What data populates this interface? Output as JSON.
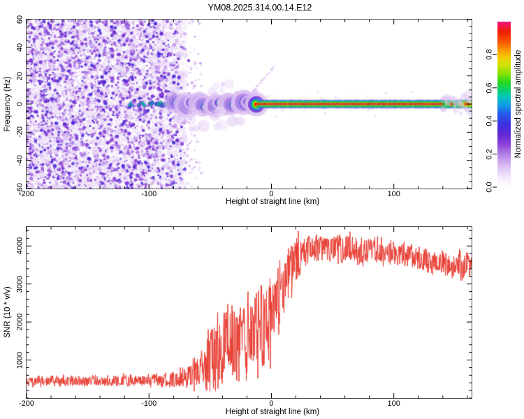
{
  "title": "YM08.2025.314.00.14.E12",
  "colors": {
    "trace_red": "#e8392e",
    "frame": "#4a4a4a",
    "tick": "#000000",
    "text": "#000000",
    "background": "#ffffff"
  },
  "colormap_stops": [
    [
      0.0,
      "#ffffff"
    ],
    [
      0.05,
      "#f6effc"
    ],
    [
      0.13,
      "#dabcf2"
    ],
    [
      0.2,
      "#b27ee6"
    ],
    [
      0.26,
      "#8a3fd8"
    ],
    [
      0.32,
      "#6228d2"
    ],
    [
      0.38,
      "#3c2fe0"
    ],
    [
      0.44,
      "#2458ec"
    ],
    [
      0.49,
      "#1394e8"
    ],
    [
      0.54,
      "#06c4c2"
    ],
    [
      0.58,
      "#04d078"
    ],
    [
      0.63,
      "#22d822"
    ],
    [
      0.68,
      "#7ce000"
    ],
    [
      0.73,
      "#c8e400"
    ],
    [
      0.78,
      "#f4d000"
    ],
    [
      0.83,
      "#fa9600"
    ],
    [
      0.88,
      "#f85200"
    ],
    [
      0.94,
      "#ee1e02"
    ],
    [
      1.0,
      "#f2127e"
    ]
  ],
  "chart_data": [
    {
      "type": "heatmap",
      "title": "YM08.2025.314.00.14.E12",
      "xlabel": "Height of straight line (km)",
      "ylabel": "Frequency (Hz)",
      "xlim": [
        -200,
        163.5
      ],
      "ylim": [
        -60,
        60
      ],
      "grid": false,
      "x_ticks": {
        "major": [
          "-200",
          "-100",
          "0",
          "100"
        ],
        "minor_step": 20
      },
      "y_ticks": {
        "major": [
          "-60",
          "-40",
          "-20",
          "0",
          "20",
          "40",
          "60"
        ],
        "minor_step": 5
      },
      "colorbar": {
        "label": "Normalized spectral amplitude",
        "ticks": [
          "0.0",
          "0.2",
          "0.4",
          "0.6",
          "0.8"
        ],
        "range": [
          0,
          1
        ],
        "position": "right"
      },
      "features": {
        "noise_region": {
          "x_start": -200,
          "x_end": -70,
          "fringe_end": -56,
          "amp_min": 0.04,
          "amp_max": 0.38,
          "description": "dense purple speckle noise over full frequency range"
        },
        "signal_dots": {
          "x_start": -116,
          "x_end": -79,
          "center_hz": 0,
          "amp_min": 0.42,
          "amp_max": 0.62,
          "description": "intermittent cyan/green dots at 0 Hz"
        },
        "wiggly_line": {
          "x_start": -79,
          "x_end": -12,
          "center_hz": 0,
          "max_wiggle_hz": 2.8,
          "core_amp": 0.93,
          "halo_halfwidth_hz": 6,
          "description": "strong carrier line with colored halo, wandering about 0 Hz"
        },
        "flat_line": {
          "x_start": -12,
          "x_end": 163.5,
          "center_hz": 0,
          "core_amp": 0.93,
          "halfwidth_hz": 3,
          "description": "flat carrier: red core, green then blue edges, faint purple fuzz"
        },
        "end_fuzz": {
          "x_start": 140,
          "x_end": 163.5,
          "description": "line broadens with purple fuzz, yellow-green core at far right"
        },
        "diagonal_streak": {
          "from_km_hz": [
            -20,
            4
          ],
          "to_km_hz": [
            3,
            27
          ],
          "description": "faint purple streak rising to upper right"
        }
      }
    },
    {
      "type": "line",
      "xlabel": "Height of straight line (km)",
      "ylabel": "SNR (10 * v/v)",
      "xlim": [
        -200,
        163.5
      ],
      "ylim": [
        0,
        4500
      ],
      "grid": false,
      "line_color": "#e8392e",
      "x_ticks": {
        "major": [
          "-200",
          "-100",
          "0",
          "100"
        ],
        "minor_step": 20
      },
      "y_ticks": {
        "major": [
          "1000",
          "2000",
          "3000",
          "4000"
        ],
        "minor_step": 200
      },
      "envelope": [
        {
          "x": -200,
          "mid": 430,
          "amp": 160
        },
        {
          "x": -150,
          "mid": 450,
          "amp": 170
        },
        {
          "x": -110,
          "mid": 460,
          "amp": 180
        },
        {
          "x": -85,
          "mid": 480,
          "amp": 220
        },
        {
          "x": -70,
          "mid": 560,
          "amp": 320
        },
        {
          "x": -60,
          "mid": 700,
          "amp": 520
        },
        {
          "x": -50,
          "mid": 1050,
          "amp": 1000
        },
        {
          "x": -42,
          "mid": 1250,
          "amp": 1250
        },
        {
          "x": -34,
          "mid": 1500,
          "amp": 1250
        },
        {
          "x": -26,
          "mid": 1600,
          "amp": 1250
        },
        {
          "x": -18,
          "mid": 1750,
          "amp": 1300
        },
        {
          "x": -10,
          "mid": 1650,
          "amp": 1350
        },
        {
          "x": -4,
          "mid": 1900,
          "amp": 1400
        },
        {
          "x": 2,
          "mid": 2300,
          "amp": 1100
        },
        {
          "x": 10,
          "mid": 3000,
          "amp": 900
        },
        {
          "x": 20,
          "mid": 3600,
          "amp": 650
        },
        {
          "x": 32,
          "mid": 3900,
          "amp": 450
        },
        {
          "x": 50,
          "mid": 3950,
          "amp": 430
        },
        {
          "x": 70,
          "mid": 3900,
          "amp": 430
        },
        {
          "x": 90,
          "mid": 3850,
          "amp": 420
        },
        {
          "x": 110,
          "mid": 3750,
          "amp": 380
        },
        {
          "x": 130,
          "mid": 3600,
          "amp": 380
        },
        {
          "x": 148,
          "mid": 3500,
          "amp": 380
        },
        {
          "x": 158,
          "mid": 3450,
          "amp": 400
        },
        {
          "x": 163,
          "mid": 3550,
          "amp": 350
        }
      ]
    }
  ]
}
